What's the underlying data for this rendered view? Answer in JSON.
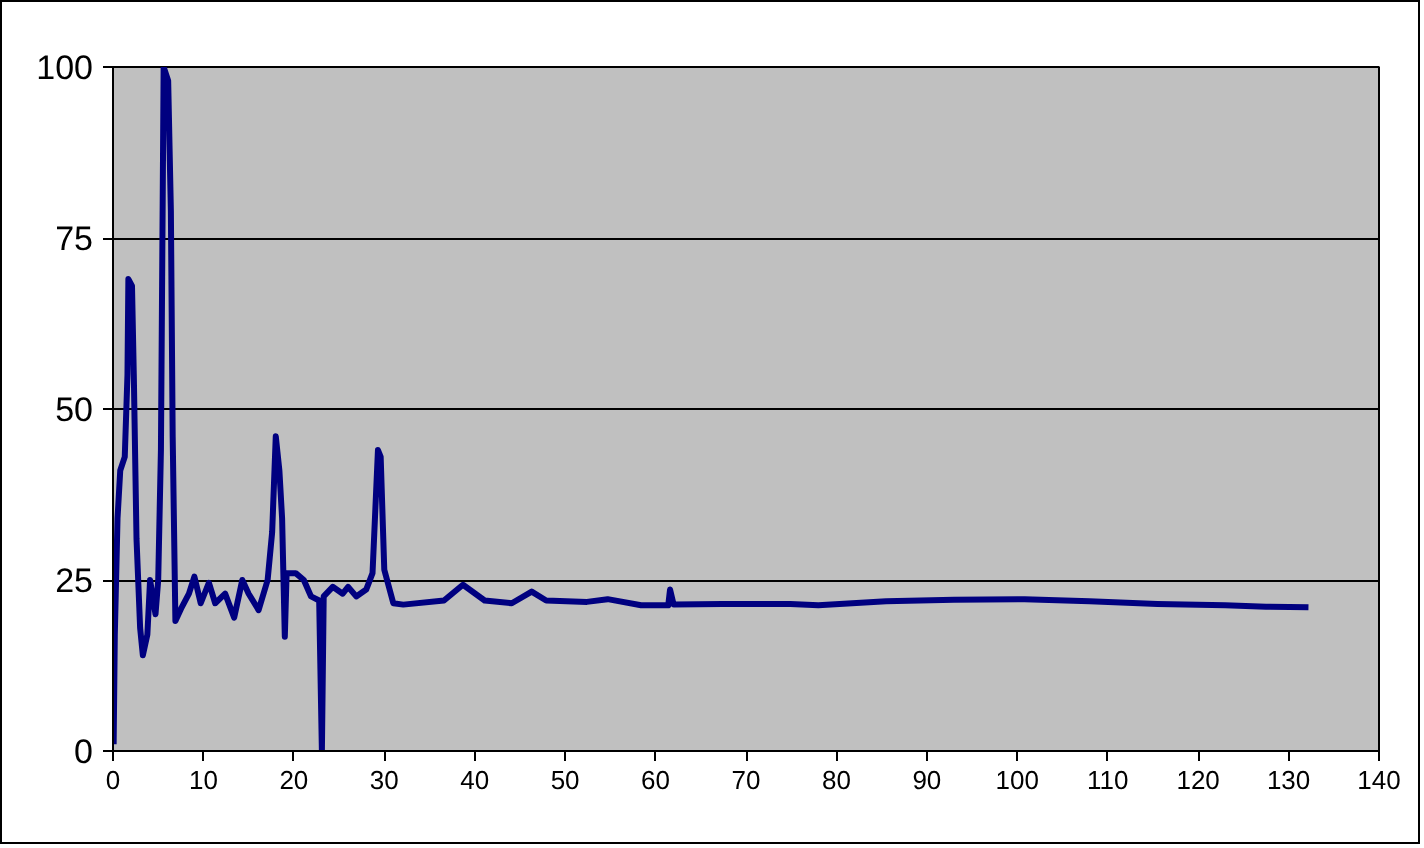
{
  "chart_data": {
    "type": "line",
    "xlim": [
      0,
      140
    ],
    "ylim": [
      0,
      100
    ],
    "xticks": [
      0,
      10,
      20,
      30,
      40,
      50,
      60,
      70,
      80,
      90,
      100,
      110,
      120,
      130,
      140
    ],
    "yticks": [
      0,
      25,
      50,
      75,
      100
    ],
    "grid": "y",
    "marker": "none",
    "line_style": "solid",
    "series": [
      {
        "color": "#000080",
        "x": [
          0.07,
          0.2,
          0.5,
          0.8,
          1.3,
          1.6,
          1.7,
          2.1,
          2.3,
          2.6,
          3.0,
          3.3,
          3.8,
          4.1,
          4.7,
          5.0,
          5.3,
          5.6,
          6.1,
          6.4,
          6.6,
          6.9,
          7.6,
          8.4,
          9.0,
          9.7,
          10.6,
          11.3,
          12.4,
          13.4,
          14.3,
          15.0,
          16.1,
          17.1,
          17.6,
          18.0,
          18.4,
          18.7,
          19.0,
          19.2,
          20.2,
          21.1,
          21.9,
          22.8,
          23.1,
          23.3,
          24.3,
          25.4,
          26.0,
          26.9,
          28.0,
          28.7,
          29.3,
          29.6,
          30.0,
          31.0,
          32.1,
          36.6,
          38.7,
          41.1,
          44.1,
          46.3,
          47.9,
          52.4,
          54.7,
          58.4,
          61.4,
          61.6,
          62.0,
          67.4,
          74.9,
          78.0,
          85.5,
          93.0,
          100.8,
          108.0,
          115.5,
          123.0,
          127.5,
          132.2
        ],
        "values": [
          1,
          17,
          34,
          41,
          43,
          55,
          69,
          68,
          55,
          31,
          18,
          14,
          17,
          25,
          20,
          25,
          44,
          100,
          98,
          79,
          46,
          19,
          21,
          23,
          25.5,
          21.6,
          24.6,
          21.6,
          23,
          19.5,
          25,
          23,
          20.6,
          25,
          32,
          46,
          41,
          34,
          16.7,
          26,
          26,
          25,
          22.6,
          22,
          0,
          22.6,
          24,
          23,
          24,
          22.6,
          23.6,
          26,
          44,
          43,
          26.5,
          21.6,
          21.4,
          22,
          24.3,
          22,
          21.6,
          23.3,
          22,
          21.8,
          22.2,
          21.3,
          21.3,
          23.6,
          21.4,
          21.5,
          21.5,
          21.3,
          21.9,
          22.1,
          22.2,
          21.9,
          21.5,
          21.3,
          21.1,
          21.0
        ]
      }
    ]
  }
}
